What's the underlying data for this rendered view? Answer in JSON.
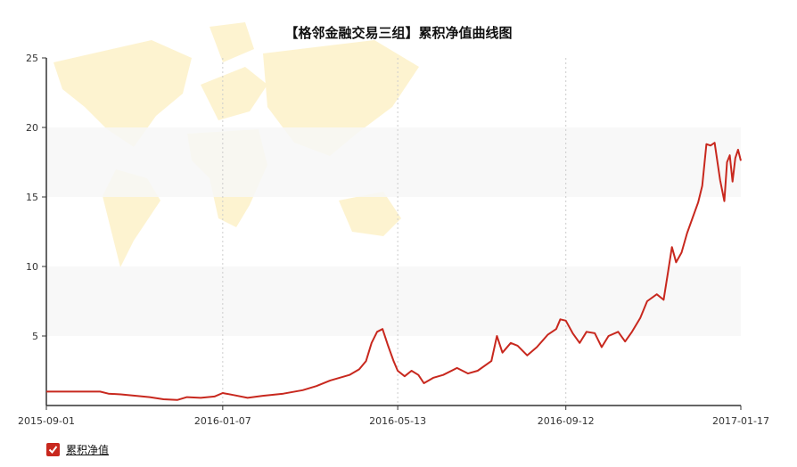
{
  "title": "【格邻金融交易三组】累积净值曲线图",
  "legend": {
    "label": "累积净值",
    "checked": true
  },
  "colors": {
    "line": "#c8281e",
    "band": "#f7f7f7",
    "map": "#fdf1c8"
  },
  "chart_data": {
    "type": "line",
    "title": "【格邻金融交易三组】累积净值曲线图",
    "xlabel": "",
    "ylabel": "",
    "x_ticks": [
      "2015-09-01",
      "2016-01-07",
      "2016-05-13",
      "2016-09-12",
      "2017-01-17"
    ],
    "y_ticks": [
      5,
      10,
      15,
      20,
      25
    ],
    "xlim": [
      "2015-09-01",
      "2017-01-17"
    ],
    "ylim": [
      0,
      25
    ],
    "grid": "vertical dashed at x ticks, alternating horizontal bands",
    "legend_position": "bottom-left",
    "series": [
      {
        "name": "累积净值",
        "color": "#c8281e",
        "points": [
          [
            "2015-09-01",
            1.0
          ],
          [
            "2015-09-15",
            1.0
          ],
          [
            "2015-10-01",
            1.0
          ],
          [
            "2015-10-10",
            1.0
          ],
          [
            "2015-10-16",
            0.85
          ],
          [
            "2015-10-25",
            0.8
          ],
          [
            "2015-11-05",
            0.7
          ],
          [
            "2015-11-15",
            0.6
          ],
          [
            "2015-11-25",
            0.45
          ],
          [
            "2015-12-05",
            0.4
          ],
          [
            "2015-12-12",
            0.6
          ],
          [
            "2015-12-22",
            0.55
          ],
          [
            "2016-01-01",
            0.65
          ],
          [
            "2016-01-07",
            0.9
          ],
          [
            "2016-01-15",
            0.75
          ],
          [
            "2016-01-25",
            0.55
          ],
          [
            "2016-02-05",
            0.7
          ],
          [
            "2016-02-20",
            0.85
          ],
          [
            "2016-03-05",
            1.1
          ],
          [
            "2016-03-15",
            1.4
          ],
          [
            "2016-03-25",
            1.8
          ],
          [
            "2016-04-01",
            2.0
          ],
          [
            "2016-04-08",
            2.2
          ],
          [
            "2016-04-15",
            2.6
          ],
          [
            "2016-04-20",
            3.2
          ],
          [
            "2016-04-24",
            4.5
          ],
          [
            "2016-04-28",
            5.3
          ],
          [
            "2016-05-02",
            5.5
          ],
          [
            "2016-05-06",
            4.3
          ],
          [
            "2016-05-10",
            3.2
          ],
          [
            "2016-05-13",
            2.5
          ],
          [
            "2016-05-18",
            2.1
          ],
          [
            "2016-05-23",
            2.5
          ],
          [
            "2016-05-28",
            2.2
          ],
          [
            "2016-06-01",
            1.6
          ],
          [
            "2016-06-08",
            2.0
          ],
          [
            "2016-06-15",
            2.2
          ],
          [
            "2016-06-25",
            2.7
          ],
          [
            "2016-07-03",
            2.3
          ],
          [
            "2016-07-10",
            2.5
          ],
          [
            "2016-07-20",
            3.2
          ],
          [
            "2016-07-24",
            5.0
          ],
          [
            "2016-07-28",
            3.8
          ],
          [
            "2016-08-03",
            4.5
          ],
          [
            "2016-08-08",
            4.3
          ],
          [
            "2016-08-15",
            3.6
          ],
          [
            "2016-08-22",
            4.2
          ],
          [
            "2016-08-30",
            5.1
          ],
          [
            "2016-09-05",
            5.5
          ],
          [
            "2016-09-08",
            6.2
          ],
          [
            "2016-09-12",
            6.1
          ],
          [
            "2016-09-17",
            5.2
          ],
          [
            "2016-09-22",
            4.5
          ],
          [
            "2016-09-27",
            5.3
          ],
          [
            "2016-10-03",
            5.2
          ],
          [
            "2016-10-08",
            4.2
          ],
          [
            "2016-10-13",
            5.0
          ],
          [
            "2016-10-20",
            5.3
          ],
          [
            "2016-10-25",
            4.6
          ],
          [
            "2016-10-30",
            5.3
          ],
          [
            "2016-11-05",
            6.3
          ],
          [
            "2016-11-10",
            7.5
          ],
          [
            "2016-11-17",
            8.0
          ],
          [
            "2016-11-22",
            7.6
          ],
          [
            "2016-11-25",
            9.5
          ],
          [
            "2016-11-28",
            11.4
          ],
          [
            "2016-12-01",
            10.3
          ],
          [
            "2016-12-05",
            11.0
          ],
          [
            "2016-12-09",
            12.4
          ],
          [
            "2016-12-13",
            13.5
          ],
          [
            "2016-12-17",
            14.6
          ],
          [
            "2016-12-20",
            15.8
          ],
          [
            "2016-12-23",
            18.8
          ],
          [
            "2016-12-26",
            18.7
          ],
          [
            "2016-12-29",
            18.9
          ],
          [
            "2017-01-02",
            16.2
          ],
          [
            "2017-01-05",
            14.7
          ],
          [
            "2017-01-07",
            17.5
          ],
          [
            "2017-01-09",
            18.0
          ],
          [
            "2017-01-11",
            16.1
          ],
          [
            "2017-01-13",
            17.8
          ],
          [
            "2017-01-15",
            18.4
          ],
          [
            "2017-01-17",
            17.6
          ]
        ]
      }
    ]
  }
}
